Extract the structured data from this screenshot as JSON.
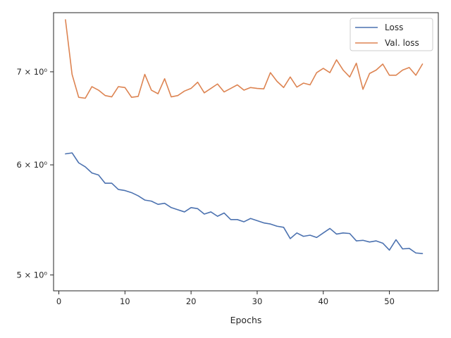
{
  "chart_data": {
    "type": "line",
    "xlabel": "Epochs",
    "ylabel": "",
    "yscale": "log",
    "xlim": [
      -0.8,
      57.4
    ],
    "ylim": [
      4.87,
      7.72
    ],
    "x_ticks": [
      0,
      10,
      20,
      30,
      40,
      50
    ],
    "x_tick_labels": [
      "0",
      "10",
      "20",
      "30",
      "40",
      "50"
    ],
    "y_ticks": [
      5,
      6,
      7
    ],
    "y_tick_labels": [
      "5 × 10⁰",
      "6 × 10⁰",
      "7 × 10⁰"
    ],
    "legend_position": "top-right",
    "grid": false,
    "x": [
      1,
      2,
      3,
      4,
      5,
      6,
      7,
      8,
      9,
      10,
      11,
      12,
      13,
      14,
      15,
      16,
      17,
      18,
      19,
      20,
      21,
      22,
      23,
      24,
      25,
      26,
      27,
      28,
      29,
      30,
      31,
      32,
      33,
      34,
      35,
      36,
      37,
      38,
      39,
      40,
      41,
      42,
      43,
      44,
      45,
      46,
      47,
      48,
      49,
      50,
      51,
      52,
      53,
      54,
      55
    ],
    "series": [
      {
        "name": "Loss",
        "color": "#4c72b0",
        "values": [
          6.11,
          6.12,
          6.02,
          5.98,
          5.92,
          5.9,
          5.82,
          5.82,
          5.76,
          5.75,
          5.73,
          5.7,
          5.66,
          5.65,
          5.62,
          5.63,
          5.59,
          5.57,
          5.55,
          5.59,
          5.58,
          5.53,
          5.55,
          5.51,
          5.54,
          5.48,
          5.48,
          5.46,
          5.49,
          5.47,
          5.45,
          5.44,
          5.42,
          5.41,
          5.31,
          5.36,
          5.33,
          5.34,
          5.32,
          5.36,
          5.4,
          5.35,
          5.36,
          5.355,
          5.29,
          5.295,
          5.28,
          5.29,
          5.27,
          5.21,
          5.3,
          5.22,
          5.225,
          5.185,
          5.18
        ]
      },
      {
        "name": "Val. loss",
        "color": "#dd8452",
        "values": [
          7.63,
          6.97,
          6.71,
          6.7,
          6.83,
          6.79,
          6.73,
          6.715,
          6.83,
          6.82,
          6.71,
          6.72,
          6.97,
          6.79,
          6.75,
          6.92,
          6.715,
          6.73,
          6.78,
          6.81,
          6.88,
          6.76,
          6.81,
          6.86,
          6.77,
          6.81,
          6.85,
          6.79,
          6.82,
          6.81,
          6.805,
          6.99,
          6.89,
          6.82,
          6.94,
          6.825,
          6.87,
          6.85,
          6.99,
          7.04,
          6.99,
          7.14,
          7.02,
          6.94,
          7.1,
          6.8,
          6.98,
          7.02,
          7.09,
          6.96,
          6.96,
          7.02,
          7.05,
          6.96,
          7.09
        ]
      }
    ]
  }
}
